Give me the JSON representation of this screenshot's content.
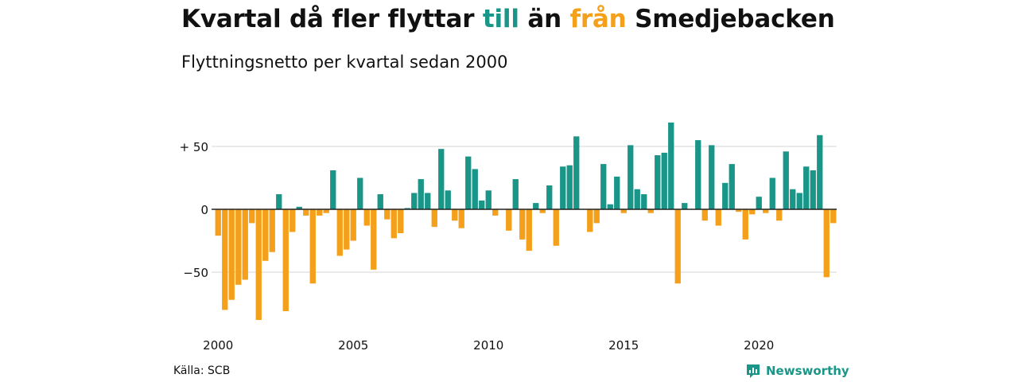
{
  "title": {
    "part1": "Kvartal då fler flyttar ",
    "part2": "till",
    "part3": " än ",
    "part4": "från",
    "part5": " Smedjebacken"
  },
  "subtitle": "Flyttningsnetto per kvartal sedan 2000",
  "source": "Källa: SCB",
  "brand": {
    "name": "Newsworthy",
    "icon": "newsworthy-logo-icon"
  },
  "colors": {
    "positive": "#1a9688",
    "negative": "#f5a01a",
    "text": "#111111",
    "grid": "#dddddd",
    "zero_line": "#222222",
    "brand": "#1a9688"
  },
  "chart_data": {
    "type": "bar",
    "title": "Kvartal då fler flyttar till än från Smedjebacken",
    "subtitle": "Flyttningsnetto per kvartal sedan 2000",
    "xlabel": "",
    "ylabel": "",
    "x_start_year": 2000,
    "periods_per_year": 4,
    "x_ticks": [
      2000,
      2005,
      2010,
      2015,
      2020
    ],
    "x_tick_labels": [
      "2000",
      "2005",
      "2010",
      "2015",
      "2020"
    ],
    "y_ticks": [
      -50,
      0,
      50
    ],
    "y_tick_labels": [
      "−50",
      "0",
      "+ 50"
    ],
    "ylim": [
      -90,
      72
    ],
    "grid": true,
    "legend": "none",
    "values": [
      -21,
      -80,
      -72,
      -60,
      -56,
      -11,
      -88,
      -41,
      -34,
      12,
      -81,
      -18,
      2,
      -5,
      -59,
      -5,
      -3,
      31,
      -37,
      -32,
      -25,
      25,
      -13,
      -48,
      12,
      -8,
      -23,
      -19,
      1,
      13,
      24,
      13,
      -14,
      48,
      15,
      -9,
      -15,
      42,
      32,
      7,
      15,
      -5,
      0,
      -17,
      24,
      -24,
      -33,
      5,
      -3,
      19,
      -29,
      34,
      35,
      58,
      0,
      -18,
      -11,
      36,
      4,
      26,
      -3,
      51,
      16,
      12,
      -3,
      43,
      45,
      69,
      -59,
      5,
      0,
      55,
      -9,
      51,
      -13,
      21,
      36,
      -2,
      -24,
      -4,
      10,
      -3,
      25,
      -9,
      46,
      16,
      13,
      34,
      31,
      59,
      -54,
      -11
    ]
  }
}
